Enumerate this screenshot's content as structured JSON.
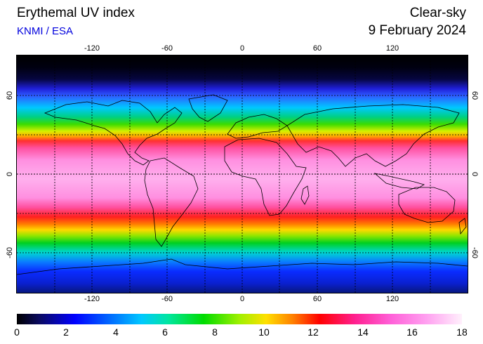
{
  "header": {
    "title": "Erythemal UV index",
    "source": "KNMI / ESA",
    "condition": "Clear-sky",
    "date": "9 February 2024"
  },
  "map": {
    "projection": "equirectangular",
    "lon_ticks": [
      "-120",
      "-60",
      "0",
      "60",
      "120"
    ],
    "lat_ticks": [
      "60",
      "0",
      "-60"
    ],
    "grid": "dashed"
  },
  "colorbar": {
    "labels": [
      "0",
      "2",
      "4",
      "6",
      "8",
      "10",
      "12",
      "14",
      "16",
      "18"
    ],
    "min": 0,
    "max": 18,
    "colors": [
      "#000000",
      "#0000ff",
      "#00c8ff",
      "#00dc00",
      "#ffe000",
      "#ff0000",
      "#ff40c0",
      "#fff0fc"
    ]
  }
}
